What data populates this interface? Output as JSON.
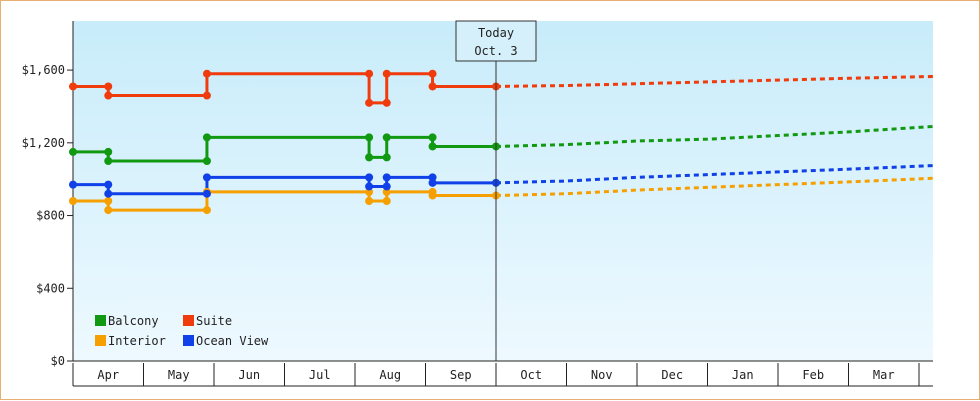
{
  "chart_data": {
    "type": "line",
    "title": "",
    "xlabel": "",
    "ylabel": "",
    "ylim": [
      0,
      1870
    ],
    "y_ticks": [
      {
        "value": 0,
        "label": "$0"
      },
      {
        "value": 400,
        "label": "$400"
      },
      {
        "value": 800,
        "label": "$800"
      },
      {
        "value": 1200,
        "label": "$1,200"
      },
      {
        "value": 1600,
        "label": "$1,600"
      }
    ],
    "x_months": [
      "Apr",
      "May",
      "Jun",
      "Jul",
      "Aug",
      "Sep",
      "Oct",
      "Nov",
      "Dec",
      "Jan",
      "Feb",
      "Mar"
    ],
    "today_marker": {
      "line1": "Today",
      "line2": "Oct. 3",
      "x": 6.0
    },
    "grid": false,
    "legend_position": "bottom-left",
    "series": [
      {
        "name": "Balcony",
        "color": "#119911",
        "history": [
          [
            0.0,
            1150
          ],
          [
            0.5,
            1150
          ],
          [
            0.5,
            1100
          ],
          [
            1.9,
            1100
          ],
          [
            1.9,
            1230
          ],
          [
            4.2,
            1230
          ],
          [
            4.2,
            1120
          ],
          [
            4.45,
            1120
          ],
          [
            4.45,
            1230
          ],
          [
            5.1,
            1230
          ],
          [
            5.1,
            1180
          ],
          [
            6.0,
            1180
          ]
        ],
        "forecast": [
          [
            6.0,
            1180
          ],
          [
            7.0,
            1190
          ],
          [
            8.0,
            1210
          ],
          [
            9.0,
            1220
          ],
          [
            10.0,
            1240
          ],
          [
            11.0,
            1260
          ],
          [
            12.2,
            1290
          ]
        ]
      },
      {
        "name": "Suite",
        "color": "#f03c0c",
        "history": [
          [
            0.0,
            1510
          ],
          [
            0.5,
            1510
          ],
          [
            0.5,
            1460
          ],
          [
            1.9,
            1460
          ],
          [
            1.9,
            1580
          ],
          [
            4.2,
            1580
          ],
          [
            4.2,
            1420
          ],
          [
            4.45,
            1420
          ],
          [
            4.45,
            1580
          ],
          [
            5.1,
            1580
          ],
          [
            5.1,
            1510
          ],
          [
            6.0,
            1510
          ]
        ],
        "forecast": [
          [
            6.0,
            1510
          ],
          [
            7.0,
            1515
          ],
          [
            8.0,
            1525
          ],
          [
            9.0,
            1535
          ],
          [
            10.0,
            1545
          ],
          [
            11.0,
            1555
          ],
          [
            12.2,
            1565
          ]
        ]
      },
      {
        "name": "Interior",
        "color": "#f5a000",
        "history": [
          [
            0.0,
            880
          ],
          [
            0.5,
            880
          ],
          [
            0.5,
            830
          ],
          [
            1.9,
            830
          ],
          [
            1.9,
            930
          ],
          [
            4.2,
            930
          ],
          [
            4.2,
            880
          ],
          [
            4.45,
            880
          ],
          [
            4.45,
            930
          ],
          [
            5.1,
            930
          ],
          [
            5.1,
            910
          ],
          [
            6.0,
            910
          ]
        ],
        "forecast": [
          [
            6.0,
            910
          ],
          [
            7.0,
            920
          ],
          [
            8.0,
            940
          ],
          [
            9.0,
            955
          ],
          [
            10.0,
            970
          ],
          [
            11.0,
            985
          ],
          [
            12.2,
            1005
          ]
        ]
      },
      {
        "name": "Ocean View",
        "color": "#1040e8",
        "history": [
          [
            0.0,
            970
          ],
          [
            0.5,
            970
          ],
          [
            0.5,
            920
          ],
          [
            1.9,
            920
          ],
          [
            1.9,
            1010
          ],
          [
            4.2,
            1010
          ],
          [
            4.2,
            960
          ],
          [
            4.45,
            960
          ],
          [
            4.45,
            1010
          ],
          [
            5.1,
            1010
          ],
          [
            5.1,
            980
          ],
          [
            6.0,
            980
          ]
        ],
        "forecast": [
          [
            6.0,
            980
          ],
          [
            7.0,
            990
          ],
          [
            8.0,
            1010
          ],
          [
            9.0,
            1025
          ],
          [
            10.0,
            1040
          ],
          [
            11.0,
            1055
          ],
          [
            12.2,
            1075
          ]
        ]
      }
    ]
  }
}
